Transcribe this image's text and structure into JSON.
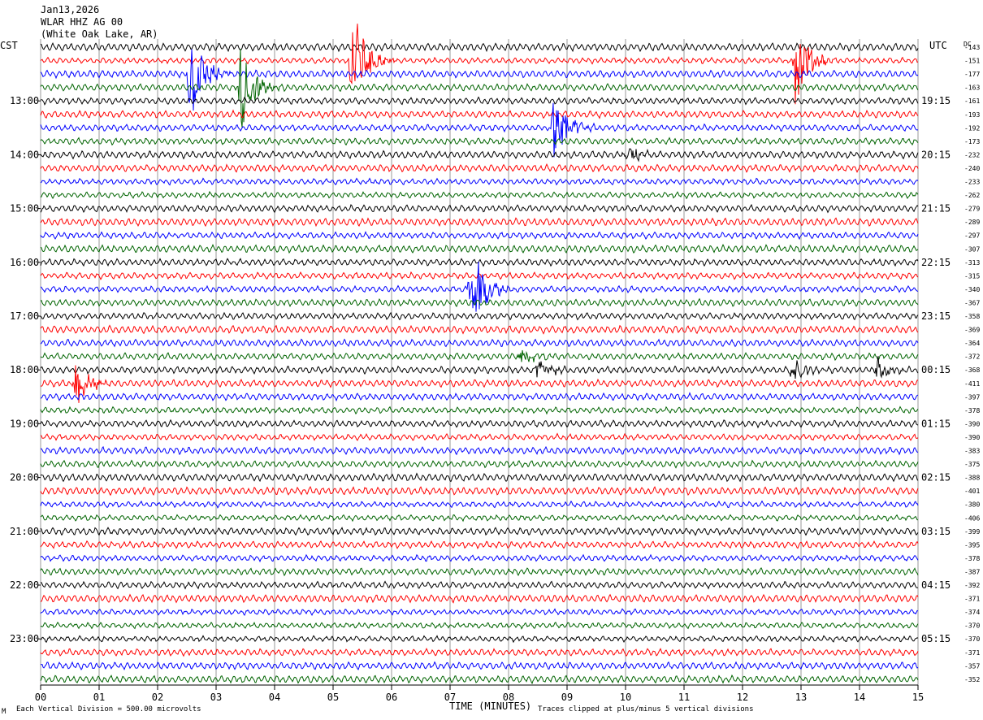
{
  "header": {
    "date": "Jan13,2026",
    "station": "WLAR HHZ AG 00",
    "location": "(White Oak Lake, AR)"
  },
  "left_zone": "CST",
  "right_zone": "UTC",
  "dc_header": "DC",
  "footer": {
    "vertical_division": "Each Vertical Division =  500.00 microvolts",
    "xlabel": "TIME (MINUTES)",
    "clip_note": "Traces clipped at plus/minus 5 vertical divisions",
    "corner_mark": "M"
  },
  "colors": {
    "trace_cycle": [
      "#000000",
      "#ff0000",
      "#0000ff",
      "#006400"
    ],
    "grid": "#808080"
  },
  "chart_data": {
    "type": "line",
    "title": "",
    "xlabel": "TIME (MINUTES)",
    "ylabel": "",
    "xlim": [
      0,
      15
    ],
    "x_ticks": [
      "00",
      "01",
      "02",
      "03",
      "04",
      "05",
      "06",
      "07",
      "08",
      "09",
      "10",
      "11",
      "12",
      "13",
      "14",
      "15"
    ],
    "left_hour_labels": [
      "13:00",
      "14:00",
      "15:00",
      "16:00",
      "17:00",
      "18:00",
      "19:00",
      "20:00",
      "21:00",
      "22:00",
      "23:00"
    ],
    "right_hour_labels": [
      "19:15",
      "20:15",
      "21:15",
      "22:15",
      "23:15",
      "00:15",
      "01:15",
      "02:15",
      "03:15",
      "04:15",
      "05:15"
    ],
    "trace_count": 48,
    "dc_offsets": [
      -143,
      -151,
      -177,
      -163,
      -161,
      -193,
      -192,
      -173,
      -232,
      -240,
      -233,
      -262,
      -279,
      -289,
      -297,
      -307,
      -313,
      -315,
      -340,
      -367,
      -358,
      -369,
      -364,
      -372,
      -368,
      -411,
      -397,
      -378,
      -390,
      -390,
      -383,
      -375,
      -388,
      -401,
      -380,
      -406,
      -399,
      -395,
      -378,
      -387,
      -392,
      -371,
      -374,
      -370,
      -370,
      -371,
      -357,
      -352
    ],
    "events": [
      {
        "trace": 2,
        "minute": 2.55,
        "amp": 3.0
      },
      {
        "trace": 3,
        "minute": 3.42,
        "amp": 2.5
      },
      {
        "trace": 1,
        "minute": 5.32,
        "amp": 3.5
      },
      {
        "trace": 1,
        "minute": 12.9,
        "amp": 2.5
      },
      {
        "trace": 6,
        "minute": 8.75,
        "amp": 2.5
      },
      {
        "trace": 18,
        "minute": 7.35,
        "amp": 2.8
      },
      {
        "trace": 25,
        "minute": 0.6,
        "amp": 1.3
      },
      {
        "trace": 24,
        "minute": 12.85,
        "amp": 0.9
      },
      {
        "trace": 24,
        "minute": 8.5,
        "amp": 0.6
      },
      {
        "trace": 24,
        "minute": 14.3,
        "amp": 0.7
      },
      {
        "trace": 8,
        "minute": 10.0,
        "amp": 0.6
      },
      {
        "trace": 23,
        "minute": 8.2,
        "amp": 0.5
      }
    ],
    "grid": true
  }
}
